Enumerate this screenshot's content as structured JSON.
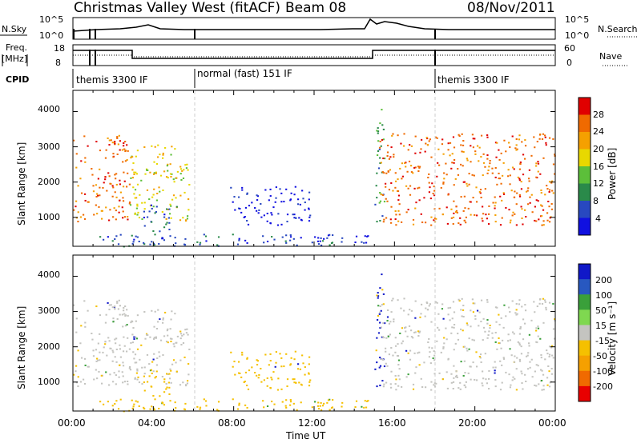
{
  "header": {
    "title": "Christmas Valley West (fitACF)",
    "beam": "Beam 08",
    "date": "08/Nov/2011"
  },
  "strips": {
    "nsky_label": "N.Sky",
    "nsky_ticks": [
      "10^5",
      "10^0"
    ],
    "nsearch_label": "N.Search",
    "nsearch_ticks": [
      "10^5",
      "10^0"
    ],
    "freq_label": [
      "Freq.",
      "[MHz]"
    ],
    "freq_ticks": [
      "18",
      "8"
    ],
    "nave_label": "Nave",
    "nave_ticks": [
      "60",
      "0"
    ],
    "cpid_label": "CPID",
    "modes": [
      {
        "start_hr": 0.0,
        "name": "themis 3300 IF"
      },
      {
        "start_hr": 6.0,
        "name": "normal (fast) 151 IF"
      },
      {
        "start_hr": 18.0,
        "name": "themis 3300 IF"
      }
    ]
  },
  "power_panel": {
    "ylabel": "Slant Range [km]",
    "ytick_labels": [
      "1000",
      "2000",
      "3000",
      "4000"
    ],
    "colorbar_label": "Power [dB]",
    "colorbar_ticks": [
      "28",
      "24",
      "20",
      "16",
      "12",
      "8",
      "4"
    ],
    "colors": [
      "#e8e8e8",
      "#1010e0",
      "#2848c0",
      "#2a8a4a",
      "#5cbf3a",
      "#e8d800",
      "#f5a000",
      "#f06a00",
      "#e00000"
    ]
  },
  "velocity_panel": {
    "ylabel": "Slant Range [km]",
    "ytick_labels": [
      "1000",
      "2000",
      "3000",
      "4000"
    ],
    "colorbar_label": "Velocity [m s⁻¹]",
    "colorbar_ticks": [
      "200",
      "100",
      "50",
      "15",
      "-15",
      "-50",
      "-100",
      "-200"
    ],
    "colors": [
      "#1018c8",
      "#2858c0",
      "#3aa03a",
      "#7fd850",
      "#c4c4c0",
      "#f5c000",
      "#f5a000",
      "#f06a00",
      "#e80000"
    ]
  },
  "xaxis": {
    "label": "Time UT",
    "tick_labels": [
      "00:00",
      "04:00",
      "08:00",
      "12:00",
      "16:00",
      "20:00",
      "00:00"
    ]
  },
  "chart_data": {
    "type": "heatmap",
    "title": "Christmas Valley West (fitACF)",
    "xlabel": "Time UT",
    "ylabel": "Slant Range [km]",
    "xlim_hours": [
      0,
      24
    ],
    "ylim_km": [
      180,
      4600
    ],
    "mode_change_hours": [
      6.0,
      18.0
    ],
    "regions": [
      {
        "t": [
          0.0,
          2.8
        ],
        "r": [
          900,
          3400
        ],
        "power_db": 28,
        "velocity": -15
      },
      {
        "t": [
          2.8,
          5.8
        ],
        "r": [
          900,
          3100
        ],
        "power_db": 20,
        "velocity": -15
      },
      {
        "t": [
          3.5,
          5.2
        ],
        "r": [
          600,
          1400
        ],
        "power_db": 8,
        "velocity": -50
      },
      {
        "t": [
          7.8,
          11.8
        ],
        "r": [
          800,
          1900
        ],
        "power_db": 4,
        "velocity": -50
      },
      {
        "t": [
          1.0,
          14.8
        ],
        "r": [
          180,
          550
        ],
        "power_db": 8,
        "velocity": -50
      },
      {
        "t": [
          15.0,
          15.5
        ],
        "r": [
          800,
          4300
        ],
        "power_db": 12,
        "velocity": 200
      },
      {
        "t": [
          15.2,
          24.0
        ],
        "r": [
          800,
          3400
        ],
        "power_db": 28,
        "velocity": -15
      }
    ]
  }
}
